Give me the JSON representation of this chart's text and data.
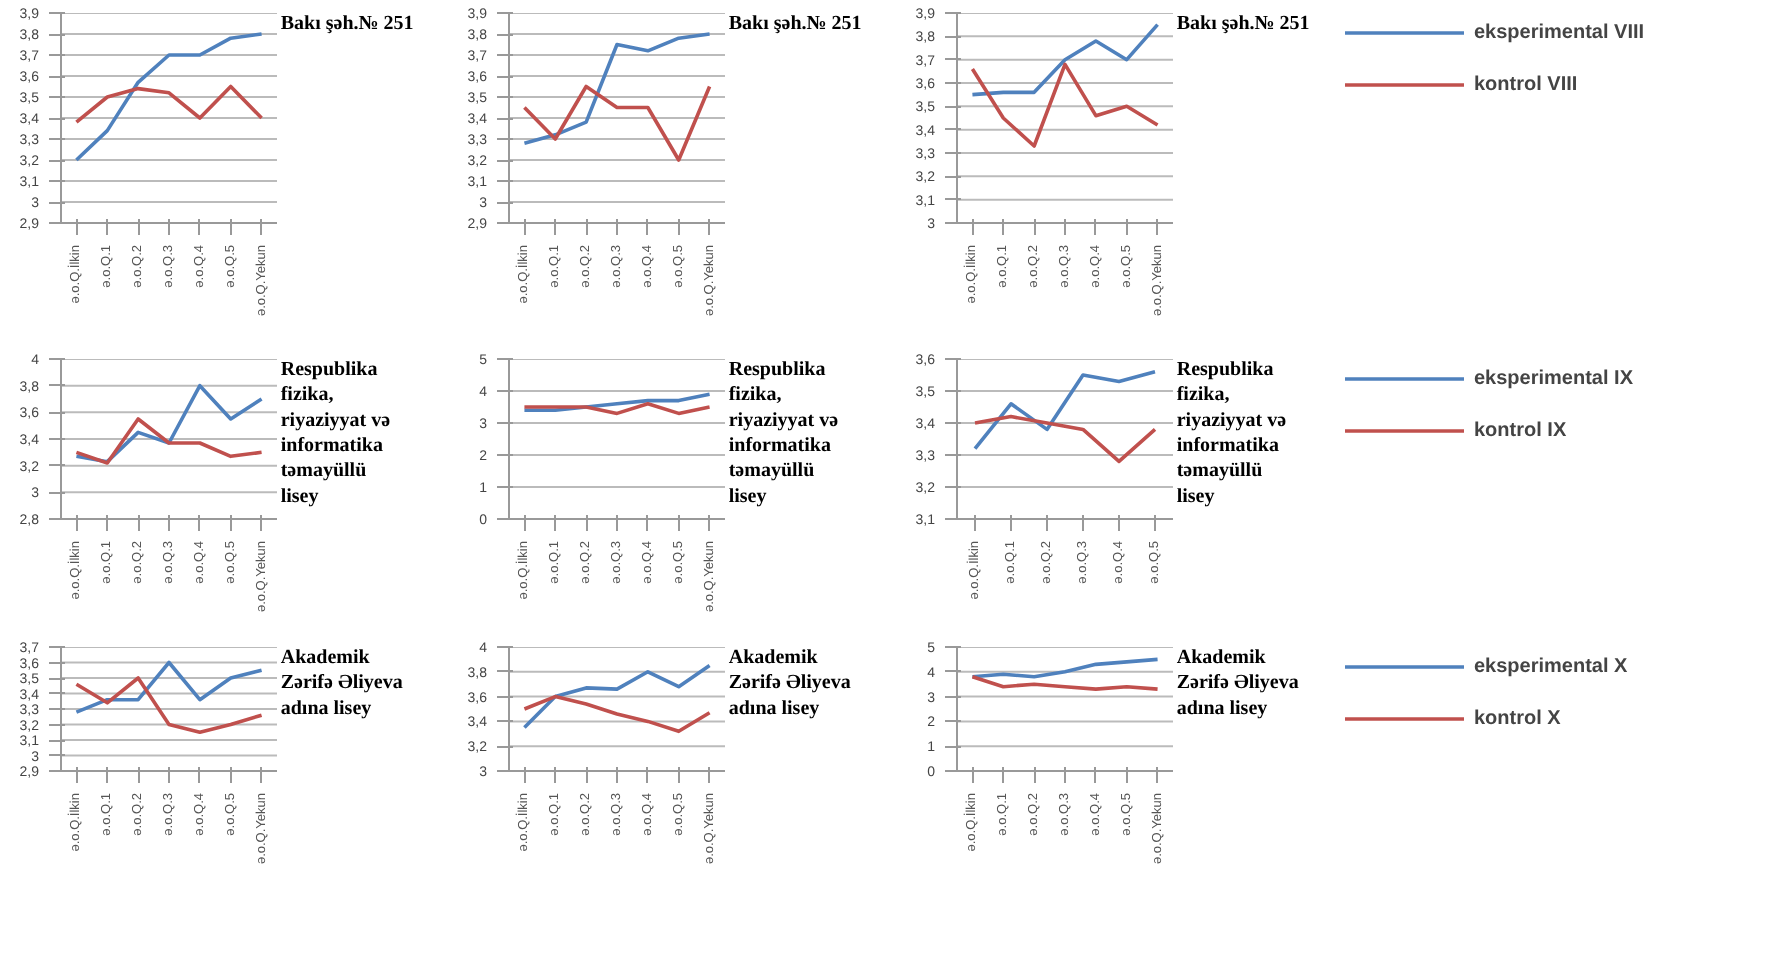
{
  "chart_data": [
    {
      "type": "line",
      "title": "Bakı şəh.№ 251",
      "categories": [
        "ə.o.Q.İlkin",
        "ə.o.Q.1",
        "ə.o.Q.2",
        "ə.o.Q.3",
        "ə.o.Q.4",
        "ə.o.Q.5",
        "ə.o.Q.Yekun"
      ],
      "ylim": [
        2.9,
        3.9
      ],
      "yticks": [
        {
          "value": 2.9,
          "label": "2,9"
        },
        3,
        {
          "value": 3.1,
          "label": "3,1"
        },
        {
          "value": 3.2,
          "label": "3,2"
        },
        {
          "value": 3.3,
          "label": "3,3"
        },
        {
          "value": 3.4,
          "label": "3,4"
        },
        {
          "value": 3.5,
          "label": "3,5"
        },
        {
          "value": 3.6,
          "label": "3,6"
        },
        {
          "value": 3.7,
          "label": "3,7"
        },
        {
          "value": 3.8,
          "label": "3,8"
        },
        {
          "value": 3.9,
          "label": "3,9"
        }
      ],
      "grid": "y",
      "series": [
        {
          "color": "#4f81bd",
          "values": [
            3.2,
            3.34,
            3.57,
            3.7,
            3.7,
            3.78,
            3.8
          ]
        },
        {
          "color": "#c0504d",
          "values": [
            3.38,
            3.5,
            3.54,
            3.52,
            3.4,
            3.55,
            3.4
          ]
        }
      ]
    },
    {
      "type": "line",
      "title": "Bakı şəh.№ 251",
      "categories": [
        "ə.o.Q.İlkin",
        "ə.o.Q.1",
        "ə.o.Q.2",
        "ə.o.Q.3",
        "ə.o.Q.4",
        "ə.o.Q.5",
        "ə.o.Q.Yekun"
      ],
      "ylim": [
        2.9,
        3.9
      ],
      "yticks": [
        {
          "value": 2.9,
          "label": "2,9"
        },
        3,
        {
          "value": 3.1,
          "label": "3,1"
        },
        {
          "value": 3.2,
          "label": "3,2"
        },
        {
          "value": 3.3,
          "label": "3,3"
        },
        {
          "value": 3.4,
          "label": "3,4"
        },
        {
          "value": 3.5,
          "label": "3,5"
        },
        {
          "value": 3.6,
          "label": "3,6"
        },
        {
          "value": 3.7,
          "label": "3,7"
        },
        {
          "value": 3.8,
          "label": "3,8"
        },
        {
          "value": 3.9,
          "label": "3,9"
        }
      ],
      "grid": "y",
      "series": [
        {
          "color": "#4f81bd",
          "values": [
            3.28,
            3.32,
            3.38,
            3.75,
            3.72,
            3.78,
            3.8
          ]
        },
        {
          "color": "#c0504d",
          "values": [
            3.45,
            3.3,
            3.55,
            3.45,
            3.45,
            3.2,
            3.55
          ]
        }
      ]
    },
    {
      "type": "line",
      "title": "Bakı şəh.№ 251",
      "categories": [
        "ə.o.Q.İlkin",
        "ə.o.Q.1",
        "ə.o.Q.2",
        "ə.o.Q.3",
        "ə.o.Q.4",
        "ə.o.Q.5",
        "ə.o.Q.Yekun"
      ],
      "ylim": [
        3,
        3.9
      ],
      "yticks": [
        3,
        {
          "value": 3.1,
          "label": "3,1"
        },
        {
          "value": 3.2,
          "label": "3,2"
        },
        {
          "value": 3.3,
          "label": "3,3"
        },
        {
          "value": 3.4,
          "label": "3,4"
        },
        {
          "value": 3.5,
          "label": "3,5"
        },
        {
          "value": 3.6,
          "label": "3,6"
        },
        {
          "value": 3.7,
          "label": "3,7"
        },
        {
          "value": 3.8,
          "label": "3,8"
        },
        {
          "value": 3.9,
          "label": "3,9"
        }
      ],
      "grid": "y",
      "legend": "right",
      "series": [
        {
          "name": "eksperimental VIII",
          "color": "#4f81bd",
          "values": [
            3.55,
            3.56,
            3.56,
            3.7,
            3.78,
            3.7,
            3.85
          ]
        },
        {
          "name": "kontrol VIII",
          "color": "#c0504d",
          "values": [
            3.66,
            3.45,
            3.33,
            3.68,
            3.46,
            3.5,
            3.42
          ]
        }
      ]
    },
    {
      "type": "line",
      "title": "Respublika fizika, riyaziyyat və informatika təmayüllü lisey",
      "categories": [
        "ə.o.Q.İlkin",
        "ə.o.Q.1",
        "ə.o.Q.2",
        "ə.o.Q.3",
        "ə.o.Q.4",
        "ə.o.Q.5",
        "ə.o.Q.Yekun"
      ],
      "ylim": [
        2.8,
        4
      ],
      "yticks": [
        {
          "value": 2.8,
          "label": "2,8"
        },
        3,
        {
          "value": 3.2,
          "label": "3,2"
        },
        {
          "value": 3.4,
          "label": "3,4"
        },
        {
          "value": 3.6,
          "label": "3,6"
        },
        {
          "value": 3.8,
          "label": "3,8"
        },
        4
      ],
      "grid": "y",
      "series": [
        {
          "color": "#4f81bd",
          "values": [
            3.27,
            3.23,
            3.45,
            3.37,
            3.8,
            3.55,
            3.7
          ]
        },
        {
          "color": "#c0504d",
          "values": [
            3.3,
            3.22,
            3.55,
            3.37,
            3.37,
            3.27,
            3.3
          ]
        }
      ]
    },
    {
      "type": "line",
      "title": "Respublika fizika, riyaziyyat və informatika təmayüllü lisey",
      "categories": [
        "ə.o.Q.İlkin",
        "ə.o.Q.1",
        "ə.o.Q.2",
        "ə.o.Q.3",
        "ə.o.Q.4",
        "ə.o.Q.5",
        "ə.o.Q.Yekun"
      ],
      "ylim": [
        0,
        5
      ],
      "yticks": [
        0,
        1,
        2,
        3,
        4,
        5
      ],
      "grid": "y",
      "series": [
        {
          "color": "#4f81bd",
          "values": [
            3.4,
            3.4,
            3.5,
            3.6,
            3.7,
            3.7,
            3.9
          ]
        },
        {
          "color": "#c0504d",
          "values": [
            3.5,
            3.5,
            3.5,
            3.3,
            3.6,
            3.3,
            3.5
          ]
        }
      ]
    },
    {
      "type": "line",
      "title": "Respublika fizika, riyaziyyat və informatika təmayüllü lisey",
      "categories": [
        "ə.o.Q.İlkin",
        "ə.o.Q.1",
        "ə.o.Q.2",
        "ə.o.Q.3",
        "ə.o.Q.4",
        "ə.o.Q.5"
      ],
      "ylim": [
        3.1,
        3.6
      ],
      "yticks": [
        {
          "value": 3.1,
          "label": "3,1"
        },
        {
          "value": 3.2,
          "label": "3,2"
        },
        {
          "value": 3.3,
          "label": "3,3"
        },
        {
          "value": 3.4,
          "label": "3,4"
        },
        {
          "value": 3.5,
          "label": "3,5"
        },
        {
          "value": 3.6,
          "label": "3,6"
        }
      ],
      "grid": "y",
      "legend": "right",
      "series": [
        {
          "name": "eksperimental IX",
          "color": "#4f81bd",
          "values": [
            3.32,
            3.46,
            3.38,
            3.55,
            3.53,
            3.56
          ]
        },
        {
          "name": "kontrol IX",
          "color": "#c0504d",
          "values": [
            3.4,
            3.42,
            3.4,
            3.38,
            3.28,
            3.38
          ]
        }
      ]
    },
    {
      "type": "line",
      "title": "Akademik Zərifə Əliyeva adına lisey",
      "categories": [
        "ə.o.Q.İlkin",
        "ə.o.Q.1",
        "ə.o.Q.2",
        "ə.o.Q.3",
        "ə.o.Q.4",
        "ə.o.Q.5",
        "ə.o.Q.Yekun"
      ],
      "ylim": [
        2.9,
        3.7
      ],
      "yticks": [
        {
          "value": 2.9,
          "label": "2,9"
        },
        3,
        {
          "value": 3.1,
          "label": "3,1"
        },
        {
          "value": 3.2,
          "label": "3,2"
        },
        {
          "value": 3.3,
          "label": "3,3"
        },
        {
          "value": 3.4,
          "label": "3,4"
        },
        {
          "value": 3.5,
          "label": "3,5"
        },
        {
          "value": 3.6,
          "label": "3,6"
        },
        {
          "value": 3.7,
          "label": "3,7"
        }
      ],
      "grid": "y",
      "series": [
        {
          "color": "#4f81bd",
          "values": [
            3.28,
            3.36,
            3.36,
            3.6,
            3.36,
            3.5,
            3.55
          ]
        },
        {
          "color": "#c0504d",
          "values": [
            3.46,
            3.34,
            3.5,
            3.2,
            3.15,
            3.2,
            3.26
          ]
        }
      ]
    },
    {
      "type": "line",
      "title": "Akademik Zərifə Əliyeva adına lisey",
      "categories": [
        "ə.o.Q.İlkin",
        "ə.o.Q.1",
        "ə.o.Q.2",
        "ə.o.Q.3",
        "ə.o.Q.4",
        "ə.o.Q.5",
        "ə.o.Q.Yekun"
      ],
      "ylim": [
        3,
        4
      ],
      "yticks": [
        3,
        {
          "value": 3.2,
          "label": "3,2"
        },
        {
          "value": 3.4,
          "label": "3,4"
        },
        {
          "value": 3.6,
          "label": "3,6"
        },
        {
          "value": 3.8,
          "label": "3,8"
        },
        4
      ],
      "grid": "y",
      "series": [
        {
          "color": "#4f81bd",
          "values": [
            3.35,
            3.6,
            3.67,
            3.66,
            3.8,
            3.68,
            3.85
          ]
        },
        {
          "color": "#c0504d",
          "values": [
            3.5,
            3.6,
            3.54,
            3.46,
            3.4,
            3.32,
            3.47
          ]
        }
      ]
    },
    {
      "type": "line",
      "title": "Akademik Zərifə Əliyeva adına lisey",
      "categories": [
        "ə.o.Q.İlkin",
        "ə.o.Q.1",
        "ə.o.Q.2",
        "ə.o.Q.3",
        "ə.o.Q.4",
        "ə.o.Q.5",
        "ə.o.Q.Yekun"
      ],
      "ylim": [
        0,
        5
      ],
      "yticks": [
        0,
        1,
        2,
        3,
        4,
        5
      ],
      "grid": "y",
      "legend": "right",
      "series": [
        {
          "name": "eksperimental X",
          "color": "#4f81bd",
          "values": [
            3.8,
            3.9,
            3.8,
            4.0,
            4.3,
            4.4,
            4.5
          ]
        },
        {
          "name": "kontrol X",
          "color": "#c0504d",
          "values": [
            3.8,
            3.4,
            3.5,
            3.4,
            3.3,
            3.4,
            3.3
          ]
        }
      ]
    }
  ]
}
